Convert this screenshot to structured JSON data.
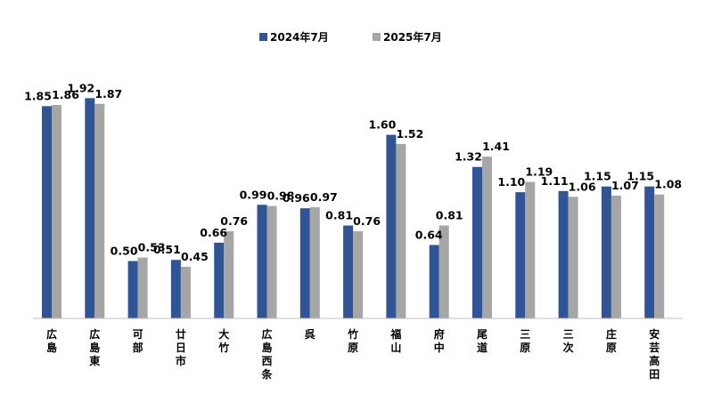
{
  "chart_data": {
    "type": "bar",
    "categories": [
      "広島",
      "広島東",
      "可部",
      "廿日市",
      "大竹",
      "広島西条",
      "呉",
      "竹原",
      "福山",
      "府中",
      "尾道",
      "三原",
      "三次",
      "庄原",
      "安芸高田"
    ],
    "series": [
      {
        "name": "2024年7月",
        "color": "#2f5597",
        "values": [
          1.85,
          1.92,
          0.5,
          0.51,
          0.66,
          0.99,
          0.96,
          0.81,
          1.6,
          0.64,
          1.32,
          1.1,
          1.11,
          1.15,
          1.15
        ],
        "labels": [
          "1.85",
          "1.92",
          "0.50",
          "0.51",
          "0.66",
          "0.99",
          "0.96",
          "0.81",
          "1.60",
          "0.64",
          "1.32",
          "1.10",
          "1.11",
          "1.15",
          "1.15"
        ]
      },
      {
        "name": "2025年7月",
        "color": "#a6a6a6",
        "values": [
          1.86,
          1.87,
          0.53,
          0.45,
          0.76,
          0.98,
          0.97,
          0.76,
          1.52,
          0.81,
          1.41,
          1.19,
          1.06,
          1.07,
          1.08
        ],
        "labels": [
          "1.86",
          "1.87",
          "0.53",
          "0.45",
          "0.76",
          "0.98",
          "0.97",
          "0.76",
          "1.52",
          "0.81",
          "1.41",
          "1.19",
          "1.06",
          "1.07",
          "1.08"
        ]
      }
    ],
    "ylim": [
      0,
      2
    ],
    "grid": false,
    "legend_position": "top-center",
    "data_labels": true,
    "category_labels_vertical": true
  }
}
